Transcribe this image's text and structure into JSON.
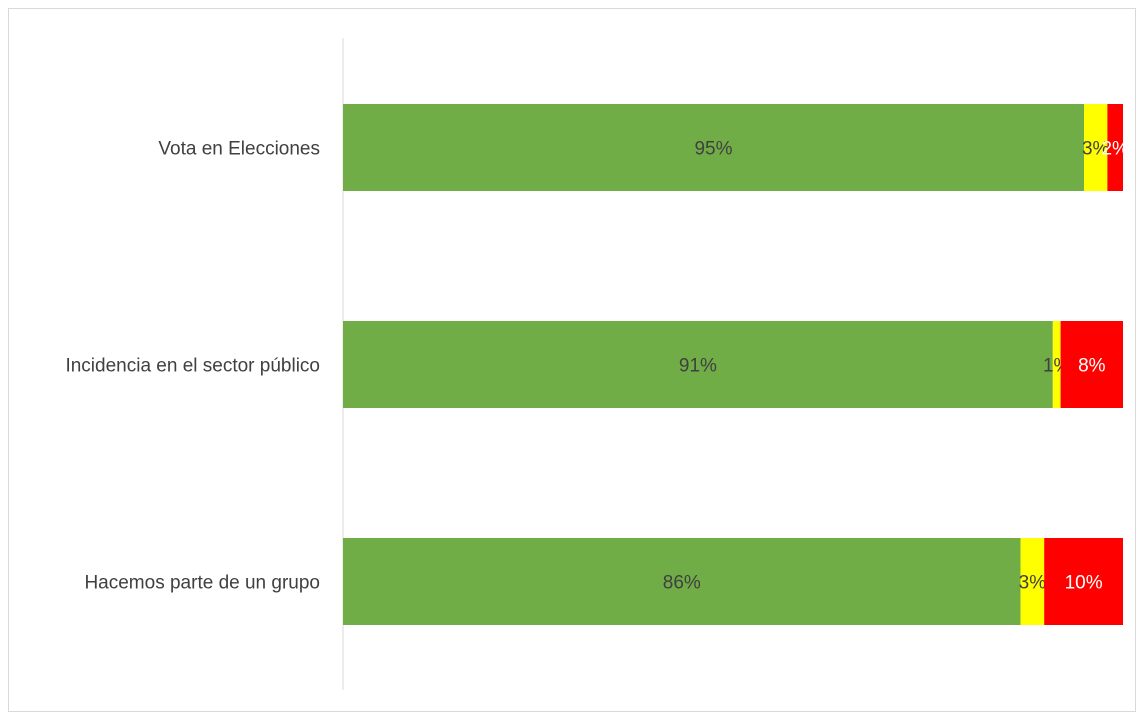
{
  "chart_data": {
    "type": "bar",
    "orientation": "horizontal",
    "stacked": true,
    "normalized": true,
    "categories": [
      "Vota en Elecciones",
      "Incidencia en el sector público",
      "Hacemos parte de un grupo"
    ],
    "series": [
      {
        "values": [
          95,
          91,
          86
        ],
        "labels": [
          "95%",
          "91%",
          "86%"
        ],
        "color": "#70ad47",
        "label_color": "#404040"
      },
      {
        "values": [
          3,
          1,
          3
        ],
        "labels": [
          "3%",
          "1%",
          "3%"
        ],
        "color": "#ffff00",
        "label_color": "#404040"
      },
      {
        "values": [
          2,
          8,
          10
        ],
        "labels": [
          "2%",
          "8%",
          "10%"
        ],
        "color": "#ff0000",
        "label_color": "#ffffff"
      }
    ],
    "title": "",
    "xlabel": "",
    "ylabel": "",
    "grid": false,
    "legend": false
  }
}
